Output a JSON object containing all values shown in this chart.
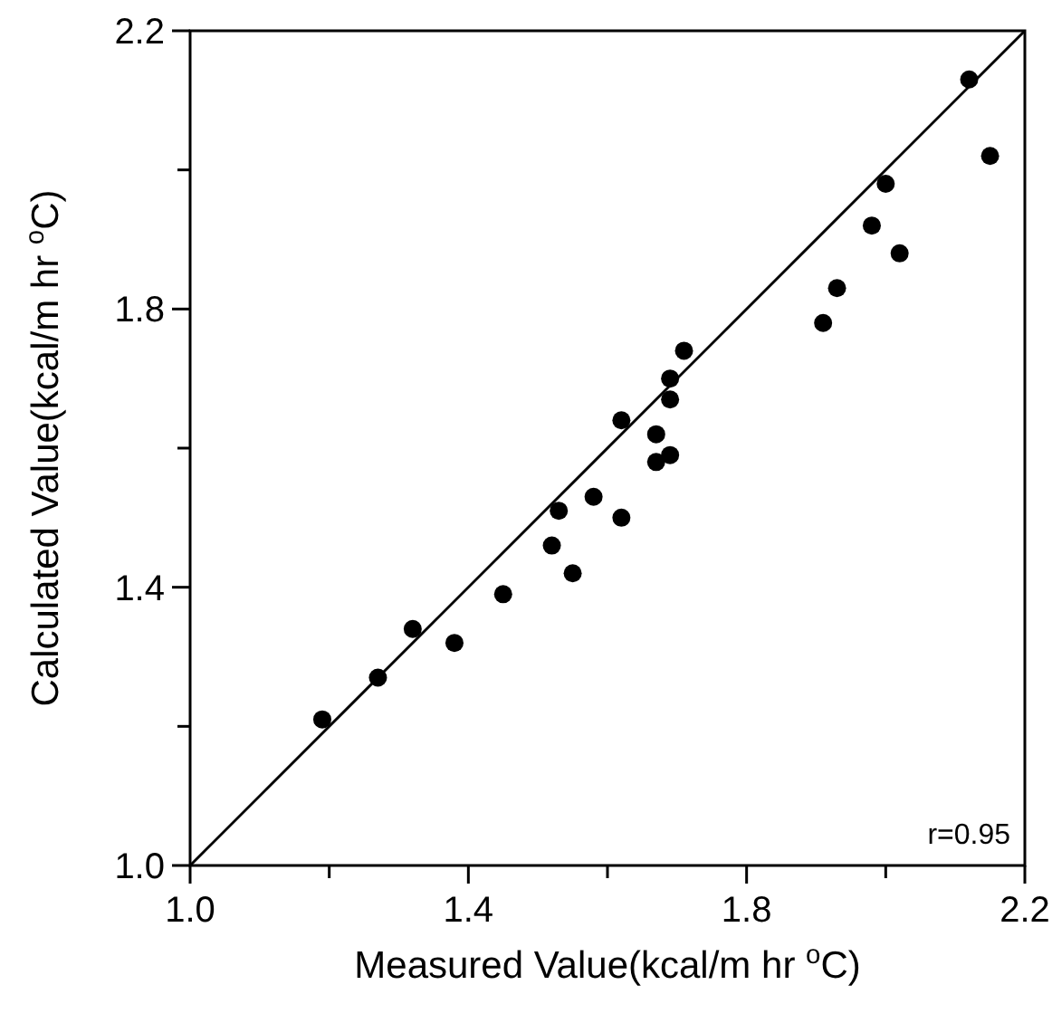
{
  "chart_data": {
    "type": "scatter",
    "xlabel": "Measured Value(kcal/m hr $^{o}$C)",
    "ylabel": "Calculated Value(kcal/m hr $^{o}$C)",
    "xlim": [
      1.0,
      2.2
    ],
    "ylim": [
      1.0,
      2.2
    ],
    "xticks": [
      {
        "value": 1.0,
        "label": "1.0"
      },
      {
        "value": 1.2,
        "label": null
      },
      {
        "value": 1.4,
        "label": "1.4"
      },
      {
        "value": 1.6,
        "label": null
      },
      {
        "value": 1.8,
        "label": "1.8"
      },
      {
        "value": 2.0,
        "label": null
      },
      {
        "value": 2.2,
        "label": "2.2"
      }
    ],
    "yticks": [
      {
        "value": 1.0,
        "label": "1.0"
      },
      {
        "value": 1.2,
        "label": null
      },
      {
        "value": 1.4,
        "label": "1.4"
      },
      {
        "value": 1.6,
        "label": null
      },
      {
        "value": 1.8,
        "label": "1.8"
      },
      {
        "value": 2.0,
        "label": null
      },
      {
        "value": 2.2,
        "label": "2.2"
      }
    ],
    "marker": "circle",
    "grid": false,
    "series": [
      {
        "color": "#000000",
        "x": [
          1.19,
          1.27,
          1.32,
          1.38,
          1.45,
          1.52,
          1.53,
          1.55,
          1.58,
          1.62,
          1.62,
          1.67,
          1.67,
          1.69,
          1.69,
          1.69,
          1.71,
          1.91,
          1.93,
          1.98,
          2.0,
          2.02,
          2.12,
          2.15
        ],
        "values": [
          1.21,
          1.27,
          1.34,
          1.32,
          1.39,
          1.46,
          1.51,
          1.42,
          1.53,
          1.5,
          1.64,
          1.62,
          1.58,
          1.59,
          1.67,
          1.7,
          1.74,
          1.78,
          1.83,
          1.92,
          1.98,
          1.88,
          2.13,
          2.02
        ]
      },
      {
        "type": "line",
        "color": "#000000",
        "marker": "none",
        "x": [
          1.0,
          2.2
        ],
        "values": [
          1.0,
          2.2
        ]
      }
    ],
    "annotations": [
      "r=0.95"
    ]
  }
}
